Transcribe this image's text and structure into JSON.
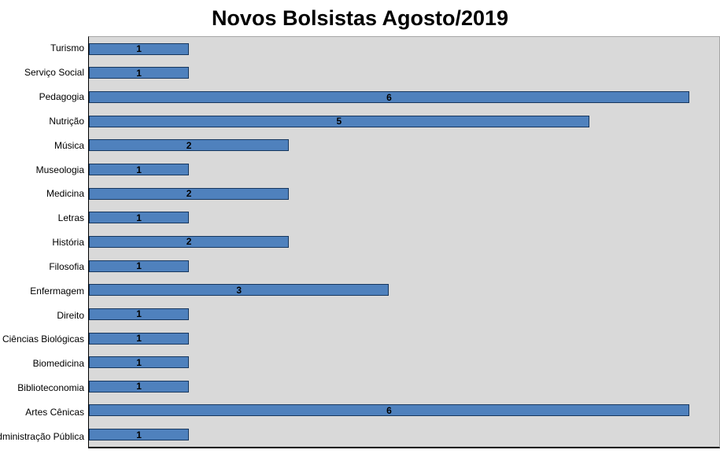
{
  "title": "Novos Bolsistas Agosto/2019",
  "chart_data": {
    "type": "bar",
    "orientation": "horizontal",
    "title": "Novos Bolsistas Agosto/2019",
    "xlabel": "",
    "ylabel": "",
    "categories": [
      "Turismo",
      "Serviço Social",
      "Pedagogia",
      "Nutrição",
      "Música",
      "Museologia",
      "Medicina",
      "Letras",
      "História",
      "Filosofia",
      "Enfermagem",
      "Direito",
      "Ciências Biológicas",
      "Biomedicina",
      "Biblioteconomia",
      "Artes Cênicas",
      "Administração Pública"
    ],
    "values": [
      1,
      1,
      6,
      5,
      2,
      1,
      2,
      1,
      2,
      1,
      3,
      1,
      1,
      1,
      1,
      6,
      1
    ],
    "xlim": [
      0,
      6.3
    ],
    "data_labels": true,
    "data_label_position": "center",
    "grid": false,
    "legend": false,
    "colors": {
      "bar_fill": "#4f81bd",
      "bar_border": "#17375e",
      "plot_background": "#d9d9d9",
      "chart_background": "#ffffff",
      "label_color": "#000000"
    }
  }
}
